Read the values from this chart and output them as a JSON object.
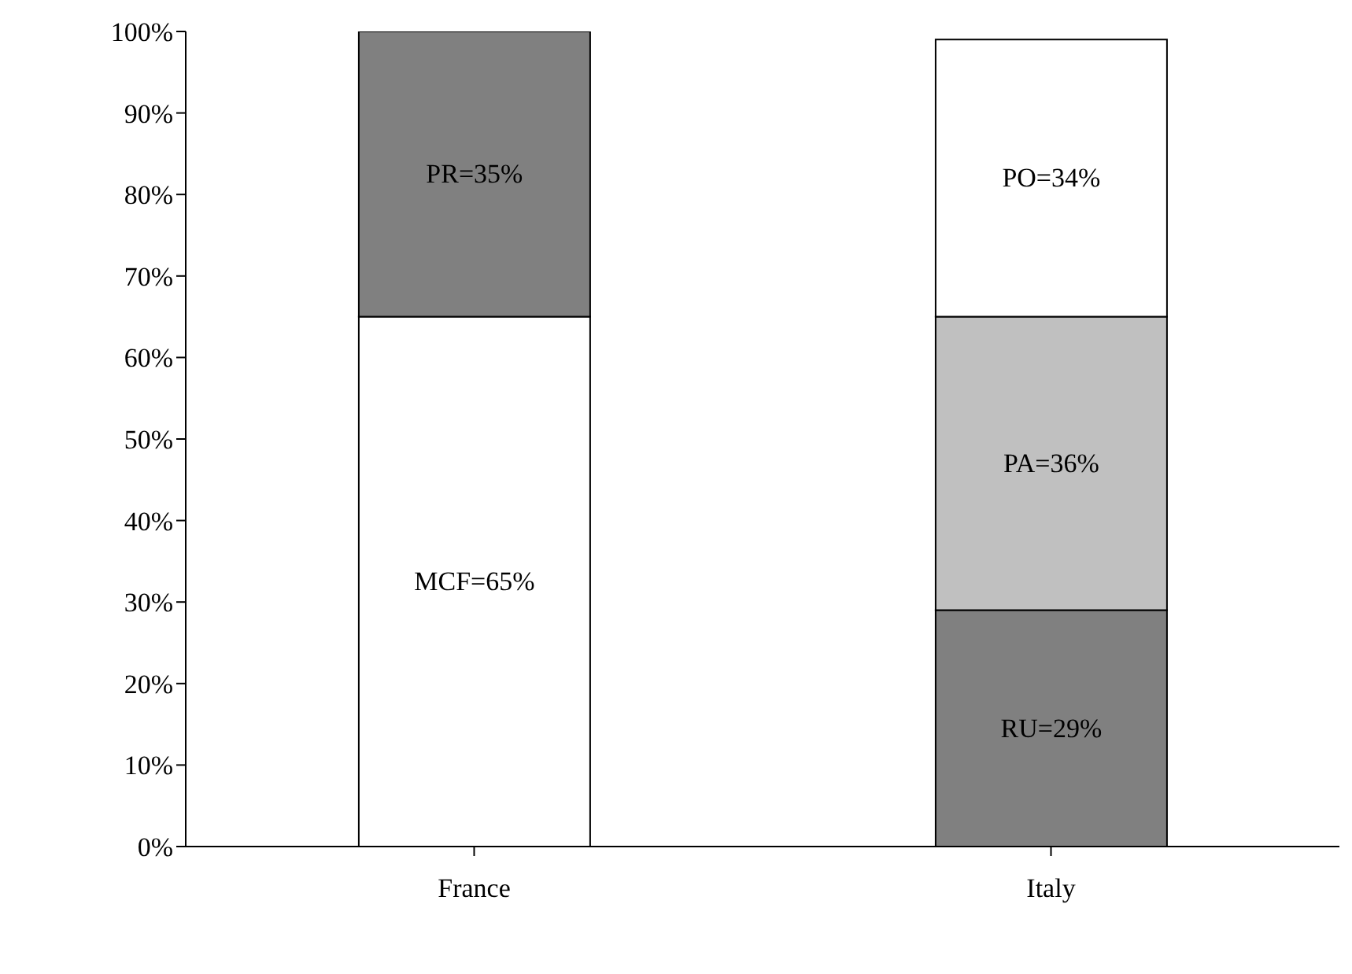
{
  "chart_data": {
    "type": "bar",
    "stacked": true,
    "categories": [
      "France",
      "Italy"
    ],
    "series": [
      {
        "colors": [
          "#ffffff",
          "#808080"
        ],
        "values": [
          65,
          29
        ],
        "value_labels": [
          "MCF=65%",
          "RU=29%"
        ]
      },
      {
        "colors": [
          "#808080",
          "#c0c0c0"
        ],
        "values": [
          35,
          36
        ],
        "value_labels": [
          "PR=35%",
          "PA=36%"
        ]
      },
      {
        "colors": [
          "#ffffff",
          "#ffffff"
        ],
        "values": [
          null,
          34
        ],
        "value_labels": [
          null,
          "PO=34%"
        ]
      }
    ],
    "ylim": [
      0,
      100
    ],
    "yticks": [
      {
        "value": 0,
        "label": "0%"
      },
      {
        "value": 10,
        "label": "10%"
      },
      {
        "value": 20,
        "label": "20%"
      },
      {
        "value": 30,
        "label": "30%"
      },
      {
        "value": 40,
        "label": "40%"
      },
      {
        "value": 50,
        "label": "50%"
      },
      {
        "value": 60,
        "label": "60%"
      },
      {
        "value": 70,
        "label": "70%"
      },
      {
        "value": 80,
        "label": "80%"
      },
      {
        "value": 90,
        "label": "90%"
      },
      {
        "value": 100,
        "label": "100%"
      }
    ],
    "grid": false,
    "legend": false
  }
}
